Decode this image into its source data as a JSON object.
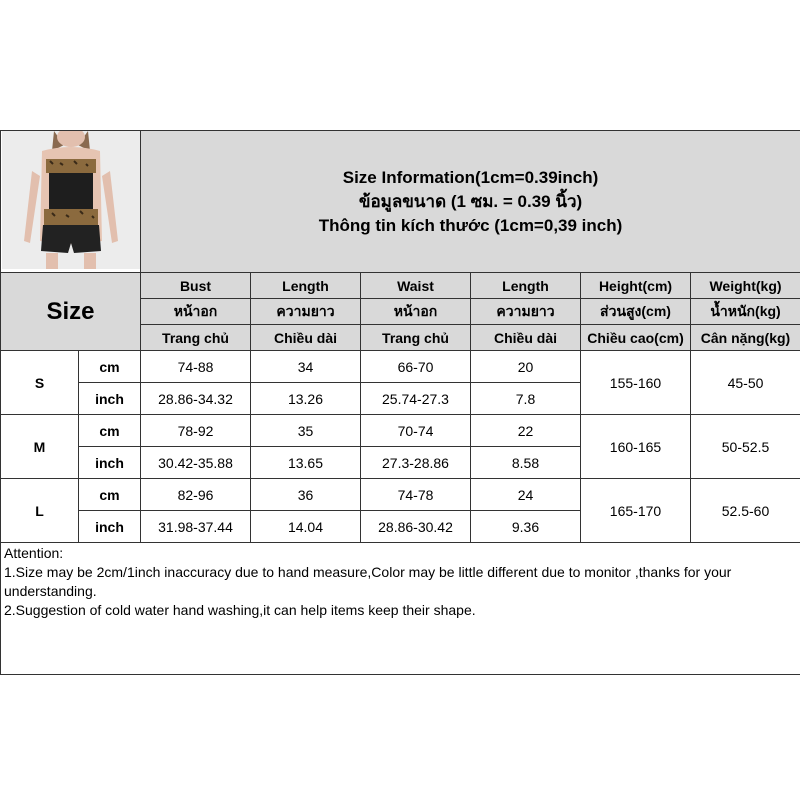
{
  "title": {
    "line1": "Size Information(1cm=0.39inch)",
    "line2": "ข้อมูลขนาด (1 ซม. = 0.39 นิ้ว)",
    "line3": "Thông tin kích thước (1cm=0,39 inch)"
  },
  "size_label": "Size",
  "headers": [
    {
      "en": "Bust",
      "th": "หน้าอก",
      "vi": "Trang chủ"
    },
    {
      "en": "Length",
      "th": "ความยาว",
      "vi": "Chiều dài"
    },
    {
      "en": "Waist",
      "th": "หน้าอก",
      "vi": "Trang chủ"
    },
    {
      "en": "Length",
      "th": "ความยาว",
      "vi": "Chiều dài"
    },
    {
      "en": "Height(cm)",
      "th": "ส่วนสูง(cm)",
      "vi": "Chiều cao(cm)"
    },
    {
      "en": "Weight(kg)",
      "th": "น้ำหนัก(kg)",
      "vi": "Cân nặng(kg)"
    }
  ],
  "units": {
    "cm": "cm",
    "inch": "inch"
  },
  "rows": [
    {
      "size": "S",
      "cm": [
        "74-88",
        "34",
        "66-70",
        "20"
      ],
      "inch": [
        "28.86-34.32",
        "13.26",
        "25.74-27.3",
        "7.8"
      ],
      "height": "155-160",
      "weight": "45-50"
    },
    {
      "size": "M",
      "cm": [
        "78-92",
        "35",
        "70-74",
        "22"
      ],
      "inch": [
        "30.42-35.88",
        "13.65",
        "27.3-28.86",
        "8.58"
      ],
      "height": "160-165",
      "weight": "50-52.5"
    },
    {
      "size": "L",
      "cm": [
        "82-96",
        "36",
        "74-78",
        "24"
      ],
      "inch": [
        "31.98-37.44",
        "14.04",
        "28.86-30.42",
        "9.36"
      ],
      "height": "165-170",
      "weight": "52.5-60"
    }
  ],
  "attention": {
    "heading": "Attention:",
    "line1": "1.Size may be 2cm/1inch inaccuracy due to hand measure,Color may be little different due to monitor ,thanks for your understanding.",
    "line2": "2.Suggestion of cold water hand washing,it can help items keep their shape."
  },
  "colors": {
    "header_bg": "#d9d9d9",
    "border": "#333333"
  }
}
